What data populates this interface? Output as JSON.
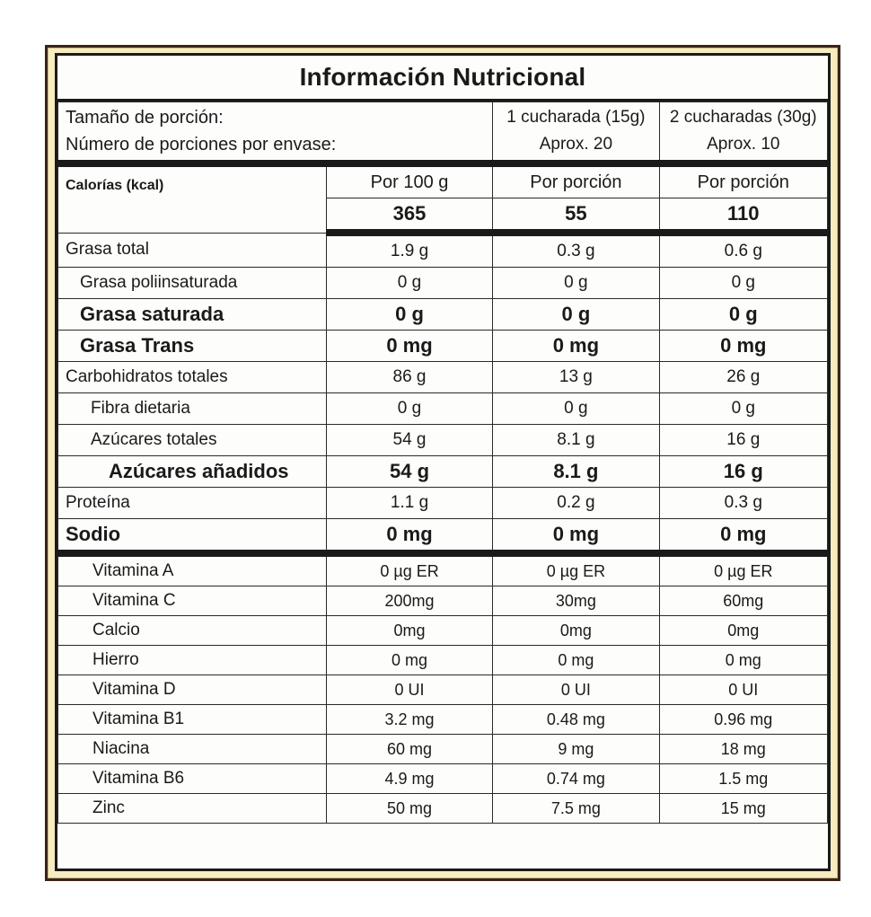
{
  "title": "Información Nutricional",
  "serving": {
    "label_size": "Tamaño de porción:",
    "label_count": "Número de porciones por envase:",
    "col2_size": "1 cucharada (15g)",
    "col2_count": "Aprox. 20",
    "col3_size": "2 cucharadas (30g)",
    "col3_count": "Aprox. 10"
  },
  "calories": {
    "label": "Calorías (kcal)",
    "headers": [
      "Por 100 g",
      "Por porción",
      "Por porción"
    ],
    "values": [
      "365",
      "55",
      "110"
    ]
  },
  "nutrients": [
    {
      "name": "Grasa total",
      "values": [
        "1.9 g",
        "0.3 g",
        "0.6 g"
      ]
    },
    {
      "name": "Grasa poliinsaturada",
      "values": [
        "0 g",
        "0 g",
        "0 g"
      ]
    },
    {
      "name": "Grasa saturada",
      "values": [
        "0 g",
        "0 g",
        "0 g"
      ]
    },
    {
      "name": "Grasa Trans",
      "values": [
        "0 mg",
        "0 mg",
        "0 mg"
      ]
    },
    {
      "name": "Carbohidratos totales",
      "values": [
        "86 g",
        "13 g",
        "26 g"
      ]
    },
    {
      "name": "Fibra dietaria",
      "values": [
        "0 g",
        "0 g",
        "0 g"
      ]
    },
    {
      "name": "Azúcares totales",
      "values": [
        "54 g",
        "8.1 g",
        "16 g"
      ]
    },
    {
      "name": "Azúcares añadidos",
      "values": [
        "54 g",
        "8.1 g",
        "16 g"
      ]
    },
    {
      "name": "Proteína",
      "values": [
        "1.1 g",
        "0.2 g",
        "0.3 g"
      ]
    },
    {
      "name": "Sodio",
      "values": [
        "0 mg",
        "0 mg",
        "0 mg"
      ]
    }
  ],
  "vitamins": [
    {
      "name": "Vitamina A",
      "values": [
        "0 µg ER",
        "0 µg ER",
        "0 µg ER"
      ]
    },
    {
      "name": "Vitamina C",
      "values": [
        "200mg",
        "30mg",
        "60mg"
      ]
    },
    {
      "name": "Calcio",
      "values": [
        "0mg",
        "0mg",
        "0mg"
      ]
    },
    {
      "name": "Hierro",
      "values": [
        "0 mg",
        "0 mg",
        "0 mg"
      ]
    },
    {
      "name": "Vitamina D",
      "values": [
        "0 UI",
        "0 UI",
        "0 UI"
      ]
    },
    {
      "name": "Vitamina B1",
      "values": [
        "3.2 mg",
        "0.48 mg",
        "0.96 mg"
      ]
    },
    {
      "name": "Niacina",
      "values": [
        "60 mg",
        "9 mg",
        "18 mg"
      ]
    },
    {
      "name": "Vitamina B6",
      "values": [
        "4.9 mg",
        "0.74 mg",
        "1.5 mg"
      ]
    },
    {
      "name": "Zinc",
      "values": [
        "50 mg",
        "7.5 mg",
        "15 mg"
      ]
    }
  ],
  "colors": {
    "frame_background": "#f6ecc0",
    "frame_border": "#3a2418",
    "panel_background": "#fdfdfb",
    "text": "#1a1a1a"
  }
}
